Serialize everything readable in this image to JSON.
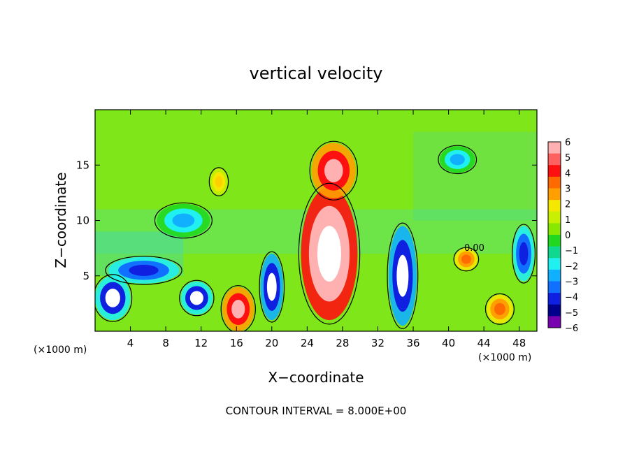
{
  "chart_data": {
    "type": "heatmap",
    "title": "vertical velocity",
    "xlabel": "X−coordinate",
    "ylabel": "Z−coordinate",
    "x_unit_left": "(×1000 m)",
    "x_unit_right": "(×1000 m)",
    "footer": "CONTOUR INTERVAL = 8.000E+00",
    "contour_label": "0.00",
    "xlim": [
      0,
      50
    ],
    "ylim": [
      0,
      20
    ],
    "x_ticks": [
      4,
      8,
      12,
      16,
      20,
      24,
      28,
      32,
      36,
      40,
      44,
      48
    ],
    "y_ticks": [
      5,
      10,
      15
    ],
    "colorbar": {
      "ticks": [
        "6",
        "5",
        "4",
        "3",
        "2",
        "1",
        "0",
        "−1",
        "−2",
        "−3",
        "−4",
        "−5",
        "−6"
      ],
      "colors": [
        "#ffb0b0",
        "#ff6060",
        "#ff1010",
        "#ff6a00",
        "#ffa000",
        "#f4e800",
        "#c8f000",
        "#88e800",
        "#20d820",
        "#10d890",
        "#20f0f0",
        "#10b0ff",
        "#1070ff",
        "#1020e0",
        "#00008c",
        "#7800b0"
      ]
    },
    "features": [
      {
        "label": "updraft core",
        "x": 26.5,
        "z": 7,
        "rx": 3.2,
        "rz": 6.0,
        "value": 9
      },
      {
        "label": "updraft plume top",
        "x": 27.0,
        "z": 14.5,
        "rx": 2.5,
        "rz": 2.5,
        "value": 5
      },
      {
        "label": "downdraft",
        "x": 34.8,
        "z": 5.0,
        "rx": 1.6,
        "rz": 4.5,
        "value": -8
      },
      {
        "label": "downdraft",
        "x": 20.0,
        "z": 4.0,
        "rx": 1.3,
        "rz": 3.0,
        "value": -8
      },
      {
        "label": "updraft",
        "x": 16.2,
        "z": 2.0,
        "rx": 1.8,
        "rz": 2.0,
        "value": 6
      },
      {
        "label": "downdraft",
        "x": 2.0,
        "z": 3.0,
        "rx": 2.0,
        "rz": 2.0,
        "value": -6
      },
      {
        "label": "downdraft",
        "x": 11.5,
        "z": 3.0,
        "rx": 1.8,
        "rz": 1.5,
        "value": -5
      },
      {
        "label": "updraft",
        "x": 45.8,
        "z": 2.0,
        "rx": 1.5,
        "rz": 1.3,
        "value": 3
      },
      {
        "label": "updraft",
        "x": 42.0,
        "z": 6.5,
        "rx": 1.3,
        "rz": 1.0,
        "value": 3
      },
      {
        "label": "updraft",
        "x": 14.0,
        "z": 13.5,
        "rx": 1.0,
        "rz": 1.2,
        "value": 2
      },
      {
        "label": "downdraft",
        "x": 48.5,
        "z": 7.0,
        "rx": 1.2,
        "rz": 2.5,
        "value": -4
      },
      {
        "label": "downdraft",
        "x": 5.5,
        "z": 5.5,
        "rx": 4.0,
        "rz": 1.2,
        "value": -4
      },
      {
        "label": "downdraft",
        "x": 41.0,
        "z": 15.5,
        "rx": 2.0,
        "rz": 1.2,
        "value": -2
      },
      {
        "label": "downdraft",
        "x": 10.0,
        "z": 10.0,
        "rx": 3.0,
        "rz": 1.5,
        "value": -2
      }
    ]
  }
}
